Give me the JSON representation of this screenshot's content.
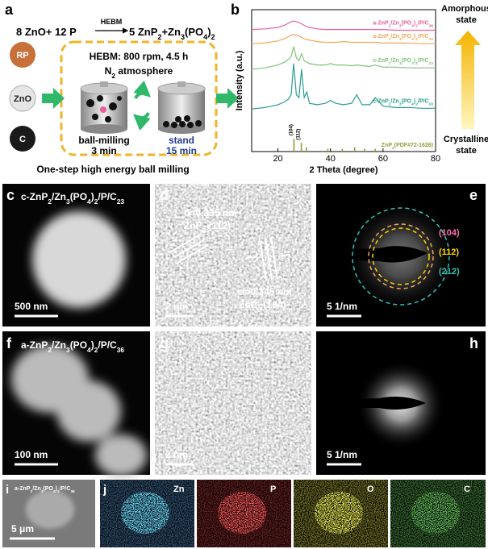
{
  "panel_a": {
    "label": "a",
    "reactants": "8 ZnO+ 12 P",
    "arrow_label": "HEBM",
    "products": "5 ZnP2+Zn3(PO4)2",
    "precursors": [
      "RP",
      "ZnO",
      "C"
    ],
    "conditions": "HEBM: 800 rpm, 4.5 h",
    "atmosphere": "N2 atmosphere",
    "step1": "ball-milling",
    "step1_time": "3 min",
    "step2": "stand",
    "step2_time": "15 min",
    "caption": "One-step high energy ball milling"
  },
  "chart_data": {
    "type": "line",
    "label": "b",
    "xlabel": "2 Theta (degree)",
    "ylabel": "Intensity (a.u.)",
    "x": [
      10,
      15,
      20,
      22.5,
      24,
      25,
      26,
      27,
      28,
      29,
      30,
      31,
      32,
      35,
      38,
      40,
      42,
      45,
      48,
      50,
      52,
      55,
      57,
      60,
      65,
      70,
      75,
      80
    ],
    "series": [
      {
        "name": "a-ZnP2/Zn3(PO4)2/P/C36",
        "color": "#e8609d",
        "values": [
          86,
          86.5,
          87.5,
          89,
          90.5,
          91.5,
          92,
          91.5,
          91,
          90,
          89,
          88,
          87.5,
          86.5,
          86,
          86,
          86,
          86,
          86,
          86,
          86,
          86,
          86,
          86,
          85.5,
          85.5,
          85.5,
          85.5
        ]
      },
      {
        "name": "a-ZnP2/Zn3(PO4)2/P/C30",
        "color": "#f4a65a",
        "values": [
          76,
          76.5,
          78,
          79.5,
          81,
          82,
          82.5,
          82,
          81.5,
          80.5,
          79.5,
          79,
          78.5,
          77.5,
          77,
          77,
          77,
          77.5,
          77,
          77,
          77,
          77,
          77,
          76.5,
          76.5,
          76.5,
          76,
          76
        ]
      },
      {
        "name": "c-ZnP2/Zn3(PO4)2/P/C23",
        "color": "#7cc576",
        "values": [
          58,
          59,
          61,
          63,
          65,
          67,
          74,
          66,
          64,
          69,
          64,
          63,
          62,
          61,
          61,
          62,
          61,
          61,
          60.5,
          61,
          60.5,
          60,
          61,
          59.5,
          59.5,
          59,
          59,
          59
        ]
      },
      {
        "name": "c-ZnP2/Zn3(PO4)2/P/C10",
        "color": "#2a9d8f",
        "values": [
          30,
          31,
          33,
          35,
          37,
          40,
          62,
          40,
          38,
          58,
          38,
          42,
          34,
          33,
          34,
          36,
          34,
          33,
          34,
          40,
          33,
          33,
          38,
          32,
          31,
          31,
          30.5,
          30.5
        ]
      }
    ],
    "reference": {
      "name": "ZnP2(PDF#72-1626)",
      "color": "#9a9a3a",
      "x": [
        26.1,
        28.9,
        30.8,
        39,
        44.5,
        49.2,
        53,
        57
      ],
      "values": [
        9,
        6,
        3,
        2,
        2,
        3,
        2,
        2
      ]
    },
    "peak_labels": [
      "(104)",
      "(112)"
    ],
    "xlim": [
      10,
      80
    ],
    "ylim": [
      0,
      100
    ],
    "xticks": [
      20,
      40,
      60,
      80
    ],
    "annotations": {
      "top": [
        "Amorphous",
        "state"
      ],
      "bottom": [
        "Crystalline",
        "state"
      ]
    }
  },
  "panel_c": {
    "label": "c",
    "sample": "c-ZnP2/Zn3(PO4)2/P/C23",
    "scale_bar": "500 nm"
  },
  "panel_d": {
    "label": "d",
    "fringe1": "d=0.335 nm",
    "plane1": "ZnP2 (112)",
    "fringe2": "d=0.345 nm",
    "plane2": "ZnP2 (104)",
    "scale_bar": "2 nm"
  },
  "panel_e": {
    "label": "e",
    "rings": [
      "(104)",
      "(112)",
      "(212)"
    ],
    "scale_bar": "5 1/nm"
  },
  "panel_f": {
    "label": "f",
    "sample": "a-ZnP2/Zn3(PO4)2/P/C36",
    "scale_bar": "100 nm"
  },
  "panel_g": {
    "label": "g",
    "scale_bar": "2 nm"
  },
  "panel_h": {
    "label": "h",
    "scale_bar": "5 1/nm"
  },
  "panel_i": {
    "label": "i",
    "sample": "a-ZnP2/Zn3(PO4)2/P/C36",
    "scale_bar": "5 μm"
  },
  "panel_j": {
    "label": "j",
    "elements": [
      "Zn",
      "P",
      "O",
      "C"
    ]
  }
}
